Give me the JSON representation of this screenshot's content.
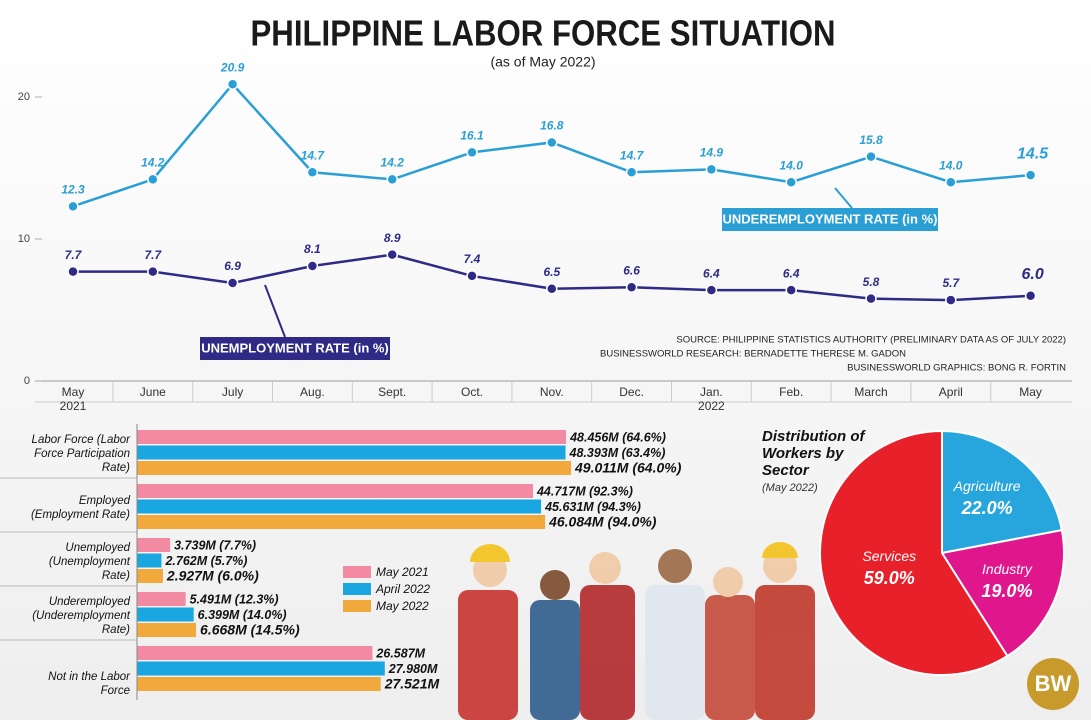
{
  "chart_data": [
    {
      "type": "line",
      "title": "PHILIPPINE LABOR FORCE SITUATION",
      "subtitle": "(as of May 2022)",
      "categories": [
        "May 2021",
        "June",
        "July",
        "Aug.",
        "Sept.",
        "Oct.",
        "Nov.",
        "Dec.",
        "Jan. 2022",
        "Feb.",
        "March",
        "April",
        "May"
      ],
      "ylim": [
        0,
        22.6
      ],
      "yticks": [
        0,
        10,
        20
      ],
      "series": [
        {
          "name": "UNDEREMPLOYMENT RATE (in %)",
          "color": "#2a9fd6",
          "values": [
            12.3,
            14.2,
            20.9,
            14.7,
            14.2,
            16.1,
            16.8,
            14.7,
            14.9,
            14.0,
            15.8,
            14.0,
            14.5
          ],
          "value_labels": [
            "12.3",
            "14.2",
            "20.9",
            "14.7",
            "14.2",
            "16.1",
            "16.8",
            "14.7",
            "14.9",
            "14.0",
            "15.8",
            "14.0",
            "14.5"
          ]
        },
        {
          "name": "UNEMPLOYMENT RATE (in %)",
          "color": "#2e2a86",
          "values": [
            7.7,
            7.7,
            6.9,
            8.1,
            8.9,
            7.4,
            6.5,
            6.6,
            6.4,
            6.4,
            5.8,
            5.7,
            6.0
          ],
          "value_labels": [
            "7.7",
            "7.7",
            "6.9",
            "8.1",
            "8.9",
            "7.4",
            "6.5",
            "6.6",
            "6.4",
            "6.4",
            "5.8",
            "5.7",
            "6.0"
          ]
        }
      ],
      "source": [
        "SOURCE: PHILIPPINE STATISTICS AUTHORITY (PRELIMINARY DATA AS OF JULY 2022)",
        "BUSINESSWORLD RESEARCH: BERNADETTE THERESE M. GADON",
        "BUSINESSWORLD GRAPHICS: BONG R. FORTIN"
      ]
    },
    {
      "type": "hbar",
      "categories": [
        "Labor Force (Labor Force Participation Rate)",
        "Employed (Employment Rate)",
        "Unemployed (Unemployment Rate)",
        "Underemployed (Underemployment Rate)",
        "Not in the Labor Force"
      ],
      "series": [
        {
          "name": "May 2021",
          "color": "#f28ba2",
          "values": [
            48.456,
            44.717,
            3.739,
            5.491,
            26.587
          ],
          "value_labels": [
            "48.456M (64.6%)",
            "44.717M (92.3%)",
            "3.739M (7.7%)",
            "5.491M (12.3%)",
            "26.587M"
          ]
        },
        {
          "name": "April 2022",
          "color": "#1aa6e0",
          "values": [
            48.393,
            45.631,
            2.762,
            6.399,
            27.98
          ],
          "value_labels": [
            "48.393M (63.4%)",
            "45.631M (94.3%)",
            "2.762M (5.7%)",
            "6.399M (14.0%)",
            "27.980M"
          ]
        },
        {
          "name": "May 2022",
          "color": "#f2a93b",
          "values": [
            49.011,
            46.084,
            2.927,
            6.668,
            27.521
          ],
          "value_labels": [
            "49.011M (64.0%)",
            "46.084M (94.0%)",
            "2.927M (6.0%)",
            "6.668M (14.5%)",
            "27.521M"
          ]
        }
      ]
    },
    {
      "type": "pie",
      "title": "Distribution of Workers by Sector",
      "subtitle": "(May 2022)",
      "categories": [
        "Agriculture",
        "Industry",
        "Services"
      ],
      "values": [
        22.0,
        19.0,
        59.0
      ],
      "value_labels": [
        "22.0%",
        "19.0%",
        "59.0%"
      ],
      "colors": [
        "#27a6dd",
        "#e0168c",
        "#e8202a"
      ]
    }
  ],
  "logo": "BW"
}
